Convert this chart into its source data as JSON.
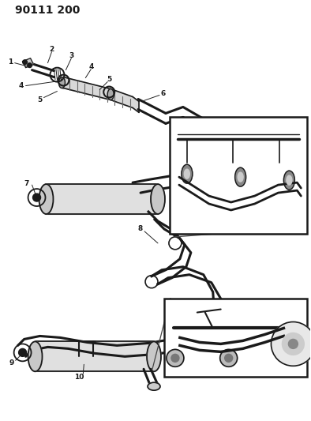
{
  "title": "90111 200",
  "bg_color": "#ffffff",
  "lc": "#1a1a1a",
  "label_fs": 6.5,
  "title_fs": 10,
  "fig_w": 3.94,
  "fig_h": 5.33,
  "dpi": 100
}
